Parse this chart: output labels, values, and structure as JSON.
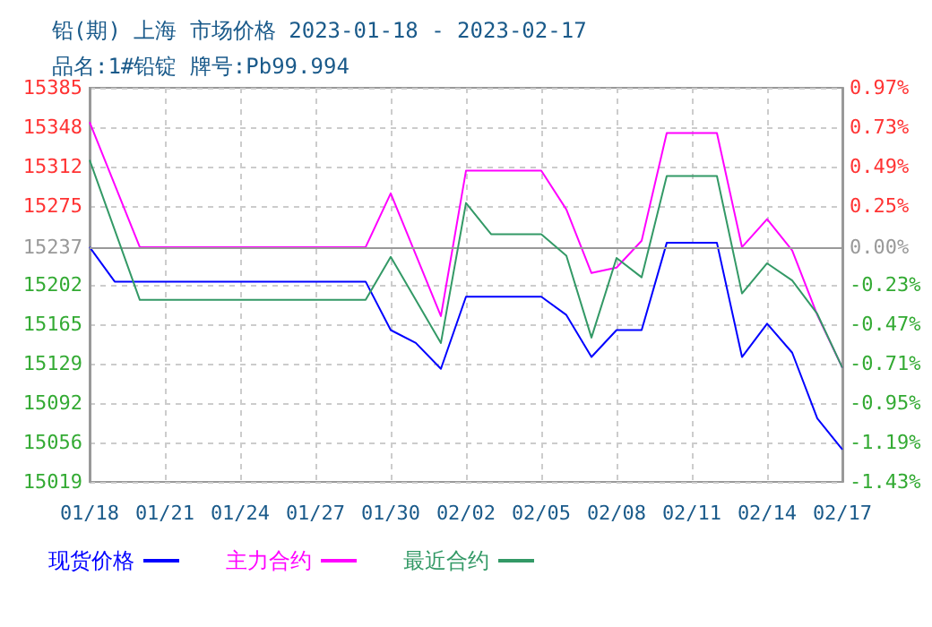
{
  "chart_data": {
    "type": "line",
    "title": "铅(期) 上海 市场价格 2023-01-18 - 2023-02-17",
    "subtitle": "品名:1#铅锭 牌号:Pb99.994",
    "xlim": [
      "2023-01-18",
      "2023-02-17"
    ],
    "xticks": [
      {
        "value": "2023-01-18",
        "label": "01/18"
      },
      {
        "value": "2023-01-21",
        "label": "01/21"
      },
      {
        "value": "2023-01-24",
        "label": "01/24"
      },
      {
        "value": "2023-01-27",
        "label": "01/27"
      },
      {
        "value": "2023-01-30",
        "label": "01/30"
      },
      {
        "value": "2023-02-02",
        "label": "02/02"
      },
      {
        "value": "2023-02-05",
        "label": "02/05"
      },
      {
        "value": "2023-02-08",
        "label": "02/08"
      },
      {
        "value": "2023-02-11",
        "label": "02/11"
      },
      {
        "value": "2023-02-14",
        "label": "02/14"
      },
      {
        "value": "2023-02-17",
        "label": "02/17"
      }
    ],
    "ylim": [
      15019,
      15385
    ],
    "yticks": [
      15019,
      15056,
      15092,
      15129,
      15165,
      15202,
      15237,
      15275,
      15312,
      15348,
      15385
    ],
    "y2lim": [
      -1.43,
      0.97
    ],
    "y2ticks": [
      {
        "value": -1.43,
        "label": "-1.43%"
      },
      {
        "value": -1.19,
        "label": "-1.19%"
      },
      {
        "value": -0.95,
        "label": "-0.95%"
      },
      {
        "value": -0.71,
        "label": "-0.71%"
      },
      {
        "value": -0.47,
        "label": "-0.47%"
      },
      {
        "value": -0.23,
        "label": "-0.23%"
      },
      {
        "value": 0,
        "label": "0.00%"
      },
      {
        "value": 0.25,
        "label": "0.25%"
      },
      {
        "value": 0.49,
        "label": "0.49%"
      },
      {
        "value": 0.73,
        "label": "0.73%"
      },
      {
        "value": 0.97,
        "label": "0.97%"
      }
    ],
    "ref_lines": [
      {
        "axis": "y",
        "value": 15237,
        "color": "#999999"
      }
    ],
    "grid": true,
    "legend": "bottom left",
    "marker": "none",
    "line_style": "solid",
    "series": [
      {
        "name": "现货价格",
        "color": "#0000ff",
        "x": [
          "2023-01-18",
          "2023-01-19",
          "2023-01-29",
          "2023-01-30",
          "2023-01-31",
          "2023-02-01",
          "2023-02-02",
          "2023-02-05",
          "2023-02-06",
          "2023-02-07",
          "2023-02-08",
          "2023-02-09",
          "2023-02-10",
          "2023-02-12",
          "2023-02-13",
          "2023-02-14",
          "2023-02-15",
          "2023-02-16",
          "2023-02-17"
        ],
        "values": [
          15237,
          15205,
          15205,
          15160,
          15148,
          15124,
          15191,
          15191,
          15174,
          15135,
          15160,
          15160,
          15241,
          15241,
          15135,
          15166,
          15139,
          15078,
          15049
        ]
      },
      {
        "name": "主力合约",
        "color": "#ff00ff",
        "x": [
          "2023-01-18",
          "2023-01-20",
          "2023-01-29",
          "2023-01-30",
          "2023-02-01",
          "2023-02-02",
          "2023-02-05",
          "2023-02-06",
          "2023-02-07",
          "2023-02-08",
          "2023-02-09",
          "2023-02-10",
          "2023-02-12",
          "2023-02-13",
          "2023-02-14",
          "2023-02-15",
          "2023-02-16",
          "2023-02-17"
        ],
        "values": [
          15353,
          15237,
          15237,
          15287,
          15173,
          15308,
          15308,
          15272,
          15213,
          15218,
          15243,
          15343,
          15343,
          15237,
          15263,
          15234,
          15174,
          15125
        ]
      },
      {
        "name": "最近合约",
        "color": "#339966",
        "x": [
          "2023-01-18",
          "2023-01-20",
          "2023-01-29",
          "2023-01-30",
          "2023-02-01",
          "2023-02-02",
          "2023-02-03",
          "2023-02-05",
          "2023-02-06",
          "2023-02-07",
          "2023-02-08",
          "2023-02-09",
          "2023-02-10",
          "2023-02-12",
          "2023-02-13",
          "2023-02-14",
          "2023-02-15",
          "2023-02-16",
          "2023-02-17"
        ],
        "values": [
          15318,
          15188,
          15188,
          15228,
          15148,
          15278,
          15249,
          15249,
          15229,
          15153,
          15227,
          15209,
          15303,
          15303,
          15194,
          15222,
          15206,
          15175,
          15125
        ]
      }
    ]
  }
}
